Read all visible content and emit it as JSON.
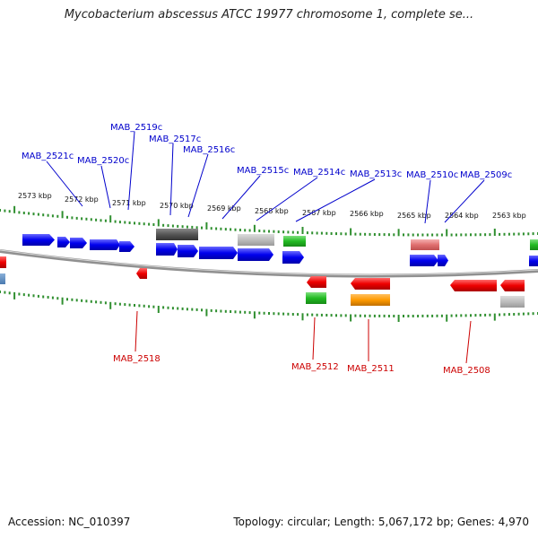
{
  "title": "Mycobacterium abscessus ATCC 19977 chromosome 1, complete se...",
  "accession": "Accession: NC_010397",
  "topology": "Topology: circular; Length: 5,067,172 bp; Genes: 4,970",
  "colors": {
    "upper_labels": "#0000cc",
    "lower_labels": "#cc0000",
    "ticks": "#2f8f2f",
    "backbone": "#888888"
  },
  "kbp_labels": [
    "2573 kbp",
    "2572 kbp",
    "2571 kbp",
    "2570 kbp",
    "2569 kbp",
    "2568 kbp",
    "2567 kbp",
    "2566 kbp",
    "2565 kbp",
    "2564 kbp",
    "2563 kbp"
  ],
  "upper_gene_labels": [
    "MAB_2521c",
    "MAB_2520c",
    "MAB_2519c",
    "MAB_2517c",
    "MAB_2516c",
    "MAB_2515c",
    "MAB_2514c",
    "MAB_2513c",
    "MAB_2510c",
    "MAB_2509c"
  ],
  "lower_gene_labels": [
    "MAB_2518",
    "MAB_2512",
    "MAB_2511",
    "MAB_2508"
  ]
}
